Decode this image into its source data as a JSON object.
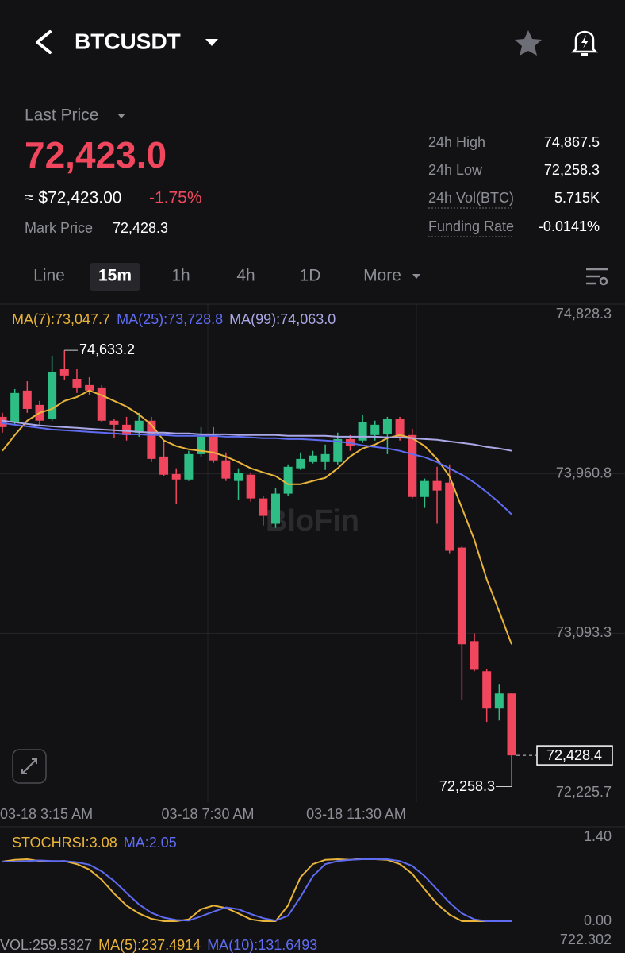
{
  "header": {
    "symbol": "BTCUSDT"
  },
  "price": {
    "last_price_label": "Last Price",
    "last_price": "72,423.0",
    "usd": "≈ $72,423.00",
    "change": "-1.75%",
    "mark_label": "Mark Price",
    "mark_price": "72,428.3"
  },
  "stats": [
    {
      "label": "24h High",
      "value": "74,867.5"
    },
    {
      "label": "24h Low",
      "value": "72,258.3"
    },
    {
      "label": "24h Vol(BTC)",
      "value": "5.715K"
    },
    {
      "label": "Funding Rate",
      "value": "-0.0141%"
    }
  ],
  "tabs": [
    "Line",
    "15m",
    "1h",
    "4h",
    "1D",
    "More"
  ],
  "chart": {
    "type": "candlestick",
    "watermark": "BloFin",
    "legend": [
      {
        "text": "MA(7):73,047.7",
        "color": "#e9b43a"
      },
      {
        "text": "MA(25):73,728.8",
        "color": "#5f6cf2"
      },
      {
        "text": "MA(99):74,063.0",
        "color": "#aaa8e6"
      }
    ],
    "up_color": "#2ebd85",
    "down_color": "#f0475e",
    "ylim": [
      72225.7,
      74828.3
    ],
    "yticks": [
      {
        "value": 74828.3,
        "label": "74,828.3"
      },
      {
        "value": 73960.8,
        "label": "73,960.8"
      },
      {
        "value": 73093.3,
        "label": "73,093.3"
      },
      {
        "value": 72225.7,
        "label": "72,225.7"
      }
    ],
    "time_labels": [
      "03-18 3:15 AM",
      "03-18 7:30 AM",
      "03-18 11:30 AM"
    ],
    "high_label": "74,633.2",
    "low_label": "72,258.3",
    "last_label": "72,428.4",
    "candles": {
      "open": [
        74271,
        74241,
        74414,
        74336,
        74258,
        74530,
        74478,
        74444,
        74431,
        74250,
        74228,
        74185,
        74250,
        74055,
        73960,
        73930,
        74068,
        74163,
        74034,
        73922,
        73956,
        73827,
        73689,
        73853,
        73991,
        74025,
        74025,
        74025,
        74150,
        74142,
        74172,
        74176,
        74258,
        74172,
        73835,
        73922,
        73913,
        73559,
        73050,
        72886,
        72683,
        72765
      ],
      "high": [
        74293,
        74422,
        74465,
        74358,
        74604,
        74633.2,
        74530,
        74487,
        74444,
        74258,
        74271,
        74293,
        74271,
        74142,
        73991,
        74086,
        74215,
        74215,
        74077,
        73991,
        73969,
        73840,
        73883,
        74012,
        74077,
        74086,
        74120,
        74185,
        74172,
        74284,
        74250,
        74271,
        74271,
        74206,
        73935,
        73999,
        74012,
        73568,
        73093,
        72899,
        72817,
        72769
      ],
      "low": [
        74185,
        74228,
        74293,
        74228,
        74250,
        74474,
        74401,
        74388,
        74241,
        74155,
        74142,
        74163,
        74025,
        73948,
        73796,
        73922,
        74055,
        74021,
        73922,
        73818,
        73809,
        73680,
        73667,
        73840,
        73982,
        74017,
        73982,
        74012,
        74086,
        74129,
        74142,
        74068,
        74142,
        73827,
        73775,
        73689,
        73529,
        72730,
        72886,
        72610,
        72618,
        72258.3
      ],
      "close": [
        74215,
        74401,
        74314,
        74250,
        74517,
        74496,
        74431,
        74414,
        74250,
        74228,
        74172,
        74250,
        74042,
        73956,
        73930,
        74068,
        74163,
        74034,
        73935,
        73965,
        73827,
        73732,
        73853,
        73999,
        74042,
        74060,
        74068,
        74150,
        74112,
        74241,
        74228,
        74258,
        74155,
        73835,
        73922,
        73870,
        73542,
        73033,
        72894,
        72683,
        72765,
        72428.4
      ]
    },
    "ma": [
      {
        "color": "#e9b43a",
        "values": [
          74086,
          74172,
          74250,
          74293,
          74314,
          74358,
          74379,
          74414,
          74388,
          74358,
          74327,
          74284,
          74228,
          74142,
          74112,
          74094,
          74086,
          74077,
          74055,
          74025,
          73991,
          73969,
          73948,
          73904,
          73904,
          73922,
          73939,
          73991,
          74055,
          74099,
          74120,
          74155,
          74172,
          74155,
          74112,
          74042,
          73948,
          73775,
          73602,
          73386,
          73213,
          73033
        ]
      },
      {
        "color": "#5f6cf2",
        "values": [
          74237,
          74228,
          74219,
          74211,
          74202,
          74198,
          74194,
          74189,
          74185,
          74181,
          74176,
          74176,
          74172,
          74172,
          74168,
          74168,
          74168,
          74168,
          74163,
          74163,
          74159,
          74155,
          74155,
          74150,
          74150,
          74146,
          74142,
          74137,
          74129,
          74116,
          74107,
          74099,
          74086,
          74068,
          74051,
          74025,
          73991,
          73956,
          73913,
          73861,
          73805,
          73740
        ]
      },
      {
        "color": "#aaa8e6",
        "values": [
          74250,
          74241,
          74232,
          74224,
          74219,
          74215,
          74211,
          74206,
          74202,
          74198,
          74194,
          74189,
          74185,
          74185,
          74181,
          74181,
          74176,
          74176,
          74176,
          74172,
          74172,
          74172,
          74172,
          74168,
          74168,
          74168,
          74168,
          74163,
          74163,
          74163,
          74163,
          74159,
          74159,
          74155,
          74150,
          74146,
          74137,
          74129,
          74120,
          74107,
          74099,
          74086
        ]
      }
    ]
  },
  "stoch": {
    "legend": [
      {
        "text": "STOCHRSI:3.08",
        "color": "#e9b43a"
      },
      {
        "text": "MA:2.05",
        "color": "#5f6cf2"
      }
    ],
    "ylim": [
      0,
      1.4
    ],
    "yticks": [
      {
        "value": 1.4,
        "label": "1.40"
      },
      {
        "value": 0,
        "label": "0.00"
      }
    ],
    "series": [
      {
        "color": "#e9b43a",
        "values": [
          0.99,
          1.02,
          1.03,
          1.0,
          0.99,
          1.0,
          0.95,
          0.86,
          0.69,
          0.46,
          0.26,
          0.13,
          0.04,
          0,
          0,
          0.03,
          0.2,
          0.26,
          0.22,
          0.13,
          0.03,
          0,
          0,
          0.26,
          0.73,
          0.95,
          1.02,
          1.03,
          1.02,
          1.04,
          1.03,
          1.02,
          0.95,
          0.79,
          0.53,
          0.29,
          0.11,
          0,
          0,
          0,
          0,
          0
        ]
      },
      {
        "color": "#5f6cf2",
        "values": [
          0.99,
          0.99,
          1.0,
          1.01,
          1.0,
          1.0,
          0.98,
          0.94,
          0.83,
          0.67,
          0.47,
          0.28,
          0.14,
          0.06,
          0.02,
          0.01,
          0.08,
          0.16,
          0.23,
          0.2,
          0.12,
          0.05,
          0.01,
          0.09,
          0.4,
          0.75,
          0.95,
          1.0,
          1.02,
          1.03,
          1.03,
          1.03,
          1.0,
          0.92,
          0.75,
          0.53,
          0.31,
          0.13,
          0.03,
          0,
          0,
          0
        ]
      }
    ]
  },
  "volume": {
    "legend": [
      {
        "text": "VOL:259.5327",
        "color": "#9a9aa2"
      },
      {
        "text": "MA(5):237.4914",
        "color": "#e9b43a"
      },
      {
        "text": "MA(10):131.6493",
        "color": "#5f6cf2"
      }
    ],
    "axis_label": "722.302"
  }
}
